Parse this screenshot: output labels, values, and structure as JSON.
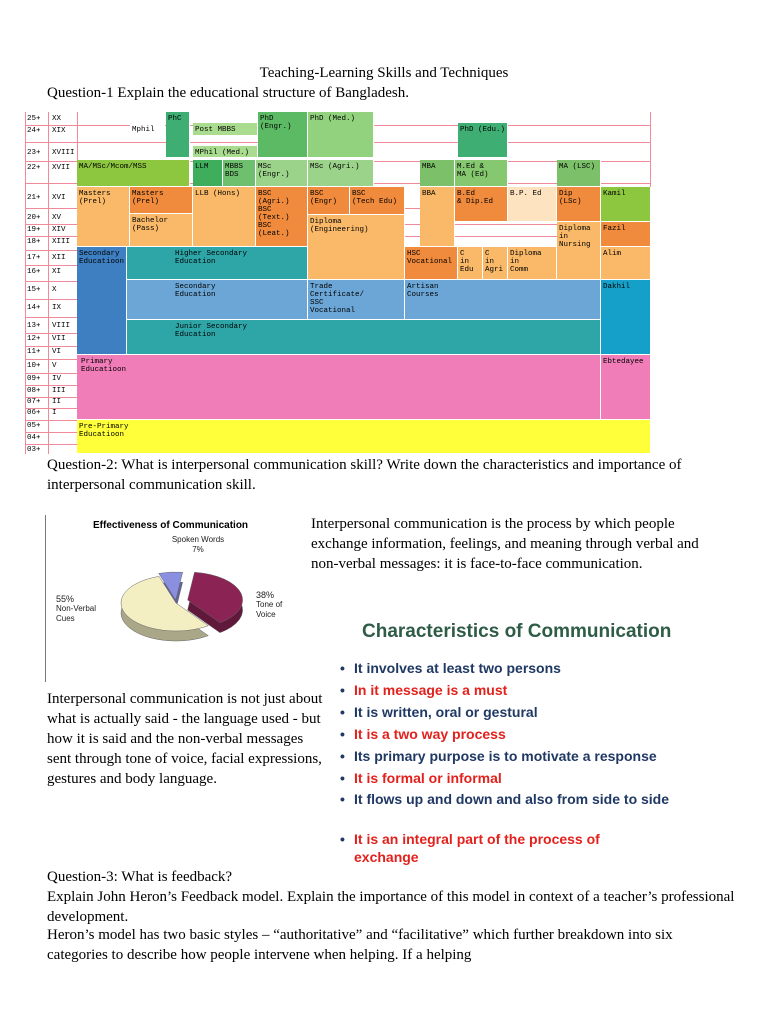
{
  "header": {
    "title": "Teaching-Learning Skills and Techniques",
    "question_1": "Question-1 Explain the educational structure of Bangladesh."
  },
  "education_structure": {
    "ages": [
      "25+",
      "24+",
      "23+",
      "22+",
      "21+",
      "20+",
      "19+",
      "18+",
      "17+",
      "16+",
      "15+",
      "14+",
      "13+",
      "12+",
      "11+",
      "10+",
      "09+",
      "08+",
      "07+",
      "06+",
      "05+",
      "04+",
      "03+"
    ],
    "grades": [
      "XX",
      "XIX",
      "XVIII",
      "XVII",
      "XVI",
      "XV",
      "XIV",
      "XIII",
      "XII",
      "XI",
      "X",
      "IX",
      "VIII",
      "VII",
      "VI",
      "V",
      "IV",
      "III",
      "II",
      "I"
    ],
    "blocks": [
      "Mphil",
      "PhC",
      "Post MBBS",
      "MPhil (Med.)",
      "PhD\n(Engr.)",
      "PhD (Med.)",
      "PhD (Edu.)",
      "MA/MSc/Mcom/MSS",
      "LLM",
      "MBBS\nBDS",
      "MSc (Engr.)",
      "MSc (Agri.)",
      "MBA",
      "M.Ed &\nMA (Ed)",
      "MA (LSC)",
      "Masters\n(Prel)",
      "Masters\n(Prel)",
      "Bachelor\n(Pass)",
      "LLB (Hons)",
      "BSC (Agri.)\nBSC (Text.)\nBSC (Leat.)",
      "BSC\n(Engr)",
      "BSC\n(Tech Edu)",
      "Diploma\n(Engineering)",
      "BBA",
      "B.Ed\n& Dip.Ed",
      "B.P. Ed",
      "Dip (LSc)",
      "Kamil",
      "Fazil",
      "Alim",
      "Diploma\nin\nNursing",
      "HSC\nVocational",
      "C\nin\nEdu",
      "C\nin\nAgri",
      "Diploma\nin\nComm",
      "Secondary\nEducatioon",
      "Higher Secondary\nEducation",
      "Secondary\nEducation",
      "Trade\nCertificate/\nSSC\nVocational",
      "Artisan\nCourses",
      "Junior Secondary\nEducation",
      "Dakhil",
      "Primary\nEducatioon",
      "Ebtedayee",
      "Pre-Primary\nEducatioon"
    ]
  },
  "question_2": "Question-2: What is interpersonal communication skill? Write down the characteristics and importance of interpersonal communication skill.",
  "pie": {
    "title": "Effectiveness of Communication",
    "slices": [
      {
        "label": "Spoken Words",
        "value": 7,
        "value_label": "7%",
        "color": "#8b8fe0"
      },
      {
        "label": "Tone of\nVoice",
        "value": 38,
        "value_label": "38%",
        "color": "#8b2455"
      },
      {
        "label": "Non-Verbal\n      Cues",
        "value": 55,
        "value_label": "55%",
        "color": "#f3efc2"
      }
    ]
  },
  "definition": "Interpersonal communication is the process by which people exchange information, feelings, and meaning through verbal and non-verbal messages: it is face-to-face communication.",
  "characteristics": {
    "heading": "Characteristics of Communication",
    "bullets": [
      {
        "text": "It involves at least two persons",
        "color": "#1f3864"
      },
      {
        "text": "In it message is a must",
        "color": "#e3211c"
      },
      {
        "text": "It is written, oral or gestural",
        "color": "#1f3864"
      },
      {
        "text": "It is a two way process",
        "color": "#e3211c"
      },
      {
        "text": "Its primary purpose is to motivate a response",
        "color": "#1f3864"
      },
      {
        "text": "It is formal or informal",
        "color": "#e3211c"
      },
      {
        "text": "It flows up and down and also from side to side",
        "color": "#1f3864"
      },
      {
        "text": "It is an integral part of the process of exchange",
        "color": "#e3211c"
      }
    ]
  },
  "importance": "Interpersonal communication is not just about what is actually said - the language used - but how it is said and the non-verbal messages sent through tone of voice, facial expressions, gestures and body language.",
  "question_3": {
    "title": "Question-3: What is feedback?",
    "prompt": "Explain John Heron’s Feedback model. Explain the importance of this model in context of a teacher’s professional development.",
    "body": "Heron’s model has two basic styles – “authoritative” and “facilitative” which further breakdown into six categories to describe how people intervene when helping. If a helping"
  }
}
